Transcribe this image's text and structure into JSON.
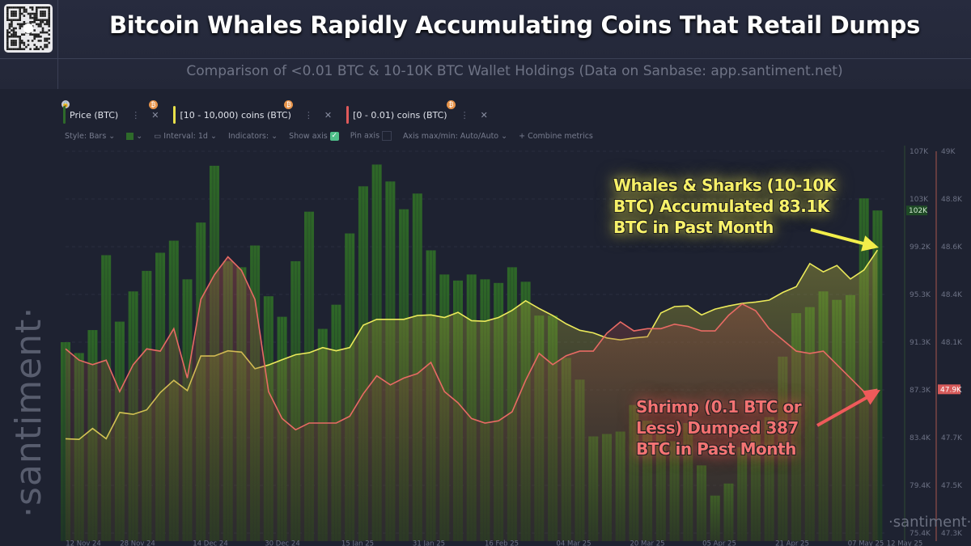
{
  "header": {
    "title": "Bitcoin Whales Rapidly Accumulating Coins That Retail Dumps",
    "subtitle": "Comparison of <0.01 BTC & 10-10K BTC Wallet Holdings (Data on Sanbase: app.santiment.net)"
  },
  "legend": [
    {
      "label": "Price (BTC)",
      "color": "#2e6a2a"
    },
    {
      "label": "[10 - 10,000) coins (BTC)",
      "color": "#e8e04a"
    },
    {
      "label": "[0 - 0.01) coins (BTC)",
      "color": "#e05a5a"
    }
  ],
  "toolbar": {
    "style": "Style: Bars",
    "interval": "Interval: 1d",
    "indicators": "Indicators:",
    "show_axis": "Show axis",
    "pin_axis": "Pin axis",
    "axis_maxmin": "Axis max/min: Auto/Auto",
    "combine": "+ Combine metrics"
  },
  "watermark": "·santiment·",
  "watermark_small": "·santiment·",
  "annotations": {
    "whales": [
      "Whales & Sharks (10-10K",
      "BTC) Accumulated 83.1K",
      "BTC in Past Month"
    ],
    "shrimp": [
      "Shrimp (0.1 BTC or",
      "Less) Dumped 387",
      "BTC in Past Month"
    ]
  },
  "colors": {
    "background": "#1e2231",
    "price_bars": "#2e6a2a",
    "whales": "#ecea5a",
    "shrimp": "#e86a64"
  },
  "chart_data": {
    "type": "bar+line",
    "x_tick_labels": [
      "12 Nov 24",
      "28 Nov 24",
      "14 Dec 24",
      "30 Dec 24",
      "15 Jan 25",
      "31 Jan 25",
      "16 Feb 25",
      "04 Mar 25",
      "20 Mar 25",
      "05 Apr 25",
      "21 Apr 25",
      "07 May 25",
      "12 May 25"
    ],
    "price_axis_ticks": [
      "107K",
      "103K",
      "99.2K",
      "95.3K",
      "91.3K",
      "87.3K",
      "83.4K",
      "79.4K",
      "75.4K"
    ],
    "price_axis_range": [
      75.4,
      107
    ],
    "price_current_label": "102K",
    "shrimp_axis_ticks": [
      "49K",
      "48.8K",
      "48.6K",
      "48.4K",
      "48.1K",
      "47.9K",
      "47.7K",
      "47.5K",
      "47.3K"
    ],
    "shrimp_axis_range": [
      47.3,
      49
    ],
    "shrimp_current_label": "47.9K",
    "whale_axis": "hidden",
    "grid": true,
    "x": [
      "2024-11-12",
      "2024-11-15",
      "2024-11-18",
      "2024-11-21",
      "2024-11-24",
      "2024-11-27",
      "2024-11-30",
      "2024-12-03",
      "2024-12-06",
      "2024-12-09",
      "2024-12-12",
      "2024-12-15",
      "2024-12-18",
      "2024-12-21",
      "2024-12-24",
      "2024-12-27",
      "2024-12-30",
      "2025-01-02",
      "2025-01-05",
      "2025-01-08",
      "2025-01-11",
      "2025-01-14",
      "2025-01-17",
      "2025-01-20",
      "2025-01-23",
      "2025-01-26",
      "2025-01-29",
      "2025-02-01",
      "2025-02-04",
      "2025-02-07",
      "2025-02-10",
      "2025-02-13",
      "2025-02-16",
      "2025-02-19",
      "2025-02-22",
      "2025-02-25",
      "2025-02-28",
      "2025-03-03",
      "2025-03-06",
      "2025-03-09",
      "2025-03-12",
      "2025-03-15",
      "2025-03-18",
      "2025-03-21",
      "2025-03-24",
      "2025-03-27",
      "2025-03-30",
      "2025-04-02",
      "2025-04-05",
      "2025-04-08",
      "2025-04-11",
      "2025-04-14",
      "2025-04-17",
      "2025-04-20",
      "2025-04-23",
      "2025-04-26",
      "2025-04-29",
      "2025-05-02",
      "2025-05-05",
      "2025-05-08",
      "2025-05-11"
    ],
    "series": [
      {
        "name": "Price (BTC)",
        "type": "bar",
        "unit": "K USD",
        "values": [
          91.2,
          90.3,
          92.2,
          98.4,
          92.9,
          95.4,
          97.1,
          98.6,
          99.6,
          96.4,
          101.1,
          105.8,
          97.9,
          97.4,
          99.2,
          95.0,
          93.3,
          97.9,
          102.0,
          92.3,
          94.3,
          100.2,
          104.1,
          105.9,
          104.5,
          102.2,
          103.5,
          98.8,
          96.8,
          96.3,
          96.8,
          96.4,
          96.1,
          97.4,
          96.2,
          93.4,
          93.4,
          89.9,
          88.1,
          83.4,
          83.6,
          83.8,
          86.0,
          84.7,
          84.0,
          83.0,
          84.5,
          81.0,
          78.5,
          79.5,
          82.5,
          84.0,
          85.0,
          90.0,
          93.6,
          94.1,
          95.4,
          94.7,
          95.1,
          103.1,
          102.1
        ]
      },
      {
        "name": "[10 - 10,000) coins (BTC)",
        "type": "line",
        "unit": "M BTC",
        "values": [
          13.147,
          13.146,
          13.163,
          13.147,
          13.188,
          13.185,
          13.192,
          13.219,
          13.238,
          13.222,
          13.276,
          13.276,
          13.284,
          13.282,
          13.256,
          13.262,
          13.27,
          13.278,
          13.281,
          13.289,
          13.284,
          13.289,
          13.324,
          13.333,
          13.333,
          13.333,
          13.339,
          13.34,
          13.336,
          13.344,
          13.331,
          13.33,
          13.336,
          13.347,
          13.362,
          13.35,
          13.339,
          13.326,
          13.316,
          13.312,
          13.304,
          13.301,
          13.304,
          13.306,
          13.343,
          13.353,
          13.354,
          13.34,
          13.349,
          13.354,
          13.358,
          13.36,
          13.363,
          13.375,
          13.384,
          13.42,
          13.407,
          13.417,
          13.396,
          13.41,
          13.441
        ]
      },
      {
        "name": "[0 - 0.01) coins (BTC)",
        "type": "line",
        "unit": "K BTC",
        "values": [
          48.12,
          48.07,
          48.05,
          48.07,
          47.93,
          48.05,
          48.12,
          48.11,
          48.21,
          47.99,
          48.34,
          48.45,
          48.53,
          48.47,
          48.34,
          47.93,
          47.81,
          47.76,
          47.79,
          47.79,
          47.79,
          47.82,
          47.92,
          48.0,
          47.96,
          47.99,
          48.01,
          48.06,
          47.93,
          47.88,
          47.81,
          47.79,
          47.8,
          47.84,
          47.98,
          48.1,
          48.05,
          48.09,
          48.11,
          48.11,
          48.19,
          48.24,
          48.2,
          48.21,
          48.21,
          48.23,
          48.22,
          48.2,
          48.2,
          48.27,
          48.32,
          48.29,
          48.21,
          48.16,
          48.11,
          48.1,
          48.11,
          48.05,
          47.99,
          47.93,
          47.94
        ]
      }
    ]
  }
}
